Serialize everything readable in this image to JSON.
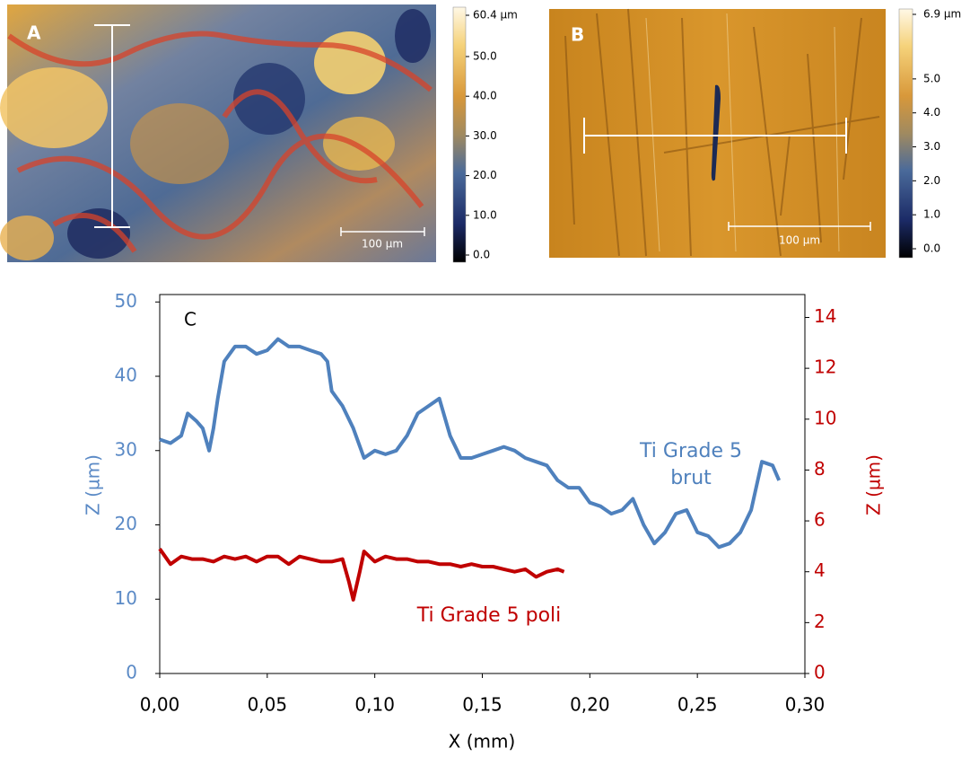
{
  "images": [
    {
      "label": "A",
      "scale_bar": "100 µm",
      "colorbar": {
        "lim": [
          0,
          60.4
        ],
        "ticks": [
          {
            "value": 0,
            "label": "0.0"
          },
          {
            "value": 10,
            "label": "10.0"
          },
          {
            "value": 20,
            "label": "20.0"
          },
          {
            "value": 30,
            "label": "30.0"
          },
          {
            "value": 40,
            "label": "40.0"
          },
          {
            "value": 50,
            "label": "50.0"
          },
          {
            "value": 60.4,
            "label": "60.4 µm"
          }
        ]
      }
    },
    {
      "label": "B",
      "scale_bar": "100 µm",
      "colorbar": {
        "lim": [
          0,
          6.9
        ],
        "ticks": [
          {
            "value": 0,
            "label": "0.0"
          },
          {
            "value": 1,
            "label": "1.0"
          },
          {
            "value": 2,
            "label": "2.0"
          },
          {
            "value": 3,
            "label": "3.0"
          },
          {
            "value": 4,
            "label": "4.0"
          },
          {
            "value": 5,
            "label": "5.0"
          },
          {
            "value": 6.9,
            "label": "6.9 µm"
          }
        ]
      }
    }
  ],
  "chart_data": {
    "type": "line",
    "panel_label": "C",
    "x_label": "X (mm)",
    "y_label": "Z (µm)",
    "y2_label": "Z (µm)",
    "xlim": [
      0,
      0.3
    ],
    "xticks": [
      {
        "value": 0,
        "label": "0,00"
      },
      {
        "value": 0.05,
        "label": "0,05"
      },
      {
        "value": 0.1,
        "label": "0,10"
      },
      {
        "value": 0.15,
        "label": "0,15"
      },
      {
        "value": 0.2,
        "label": "0,20"
      },
      {
        "value": 0.25,
        "label": "0,25"
      },
      {
        "value": 0.3,
        "label": "0,30"
      }
    ],
    "ylim": [
      0,
      51
    ],
    "yticks": [
      0,
      10,
      20,
      30,
      40,
      50
    ],
    "y2lim": [
      0,
      14.9
    ],
    "y2ticks": [
      0,
      2,
      4,
      6,
      8,
      10,
      12,
      14
    ],
    "y_color": "#5b8ac6",
    "y2_color": "#c00000",
    "series": [
      {
        "name": "Ti Grade 5 brut",
        "color": "#4f81bd",
        "axis": "y",
        "x": [
          0,
          0.005,
          0.01,
          0.013,
          0.017,
          0.02,
          0.023,
          0.025,
          0.027,
          0.03,
          0.035,
          0.04,
          0.045,
          0.05,
          0.055,
          0.06,
          0.065,
          0.07,
          0.075,
          0.078,
          0.08,
          0.085,
          0.09,
          0.095,
          0.1,
          0.105,
          0.11,
          0.115,
          0.12,
          0.125,
          0.13,
          0.135,
          0.14,
          0.145,
          0.15,
          0.155,
          0.16,
          0.165,
          0.17,
          0.175,
          0.18,
          0.185,
          0.19,
          0.195,
          0.2,
          0.205,
          0.21,
          0.215,
          0.22,
          0.225,
          0.23,
          0.235,
          0.24,
          0.245,
          0.25,
          0.255,
          0.26,
          0.265,
          0.27,
          0.275,
          0.28,
          0.285,
          0.288
        ],
        "values": [
          31.5,
          31,
          32,
          35,
          34,
          33,
          30,
          33,
          37,
          42,
          44,
          44,
          43,
          43.5,
          45,
          44,
          44,
          43.5,
          43,
          42,
          38,
          36,
          33,
          29,
          30,
          29.5,
          30,
          32,
          35,
          36,
          37,
          32,
          29,
          29,
          29.5,
          30,
          30.5,
          30,
          29,
          28.5,
          28,
          26,
          25,
          25,
          23,
          22.5,
          21.5,
          22,
          23.5,
          20,
          17.5,
          19,
          21.5,
          22,
          19,
          18.5,
          17,
          17.5,
          19,
          22,
          28.5,
          28,
          26
        ]
      },
      {
        "name": "Ti Grade 5 poli",
        "color": "#c00000",
        "axis": "y2",
        "x": [
          0,
          0.005,
          0.01,
          0.015,
          0.02,
          0.025,
          0.03,
          0.035,
          0.04,
          0.045,
          0.05,
          0.055,
          0.06,
          0.065,
          0.07,
          0.075,
          0.08,
          0.085,
          0.088,
          0.09,
          0.093,
          0.095,
          0.1,
          0.105,
          0.11,
          0.115,
          0.12,
          0.125,
          0.13,
          0.135,
          0.14,
          0.145,
          0.15,
          0.155,
          0.16,
          0.165,
          0.17,
          0.175,
          0.18,
          0.185,
          0.188
        ],
        "values": [
          4.9,
          4.3,
          4.6,
          4.5,
          4.5,
          4.4,
          4.6,
          4.5,
          4.6,
          4.4,
          4.6,
          4.6,
          4.3,
          4.6,
          4.5,
          4.4,
          4.4,
          4.5,
          3.6,
          2.9,
          4.0,
          4.8,
          4.4,
          4.6,
          4.5,
          4.5,
          4.4,
          4.4,
          4.3,
          4.3,
          4.2,
          4.3,
          4.2,
          4.2,
          4.1,
          4.0,
          4.1,
          3.8,
          4.0,
          4.1,
          4.0
        ]
      }
    ]
  }
}
